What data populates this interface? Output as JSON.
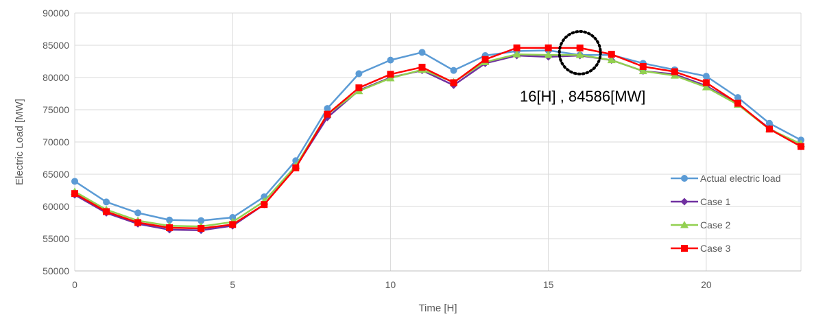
{
  "chart_data": {
    "type": "line",
    "title": "",
    "xlabel": "Time [H]",
    "ylabel": "Electric Load [MW]",
    "xlim": [
      0,
      23
    ],
    "ylim": [
      50000,
      90000
    ],
    "x_ticks": [
      0,
      5,
      10,
      15,
      20
    ],
    "y_ticks": [
      50000,
      55000,
      60000,
      65000,
      70000,
      75000,
      80000,
      85000,
      90000
    ],
    "grid": true,
    "legend_position": "right",
    "x": [
      0,
      1,
      2,
      3,
      4,
      5,
      6,
      7,
      8,
      9,
      10,
      11,
      12,
      13,
      14,
      15,
      16,
      17,
      18,
      19,
      20,
      21,
      22,
      23
    ],
    "series": [
      {
        "name": "Actual electric load",
        "color": "#5b9bd5",
        "marker": "circle",
        "values": [
          63900,
          60700,
          59000,
          57900,
          57800,
          58300,
          61500,
          67100,
          75200,
          80600,
          82700,
          83900,
          81100,
          83400,
          84100,
          84200,
          83500,
          83500,
          82200,
          81200,
          80200,
          76900,
          72900,
          70300
        ]
      },
      {
        "name": "Case 1",
        "color": "#7030a0",
        "marker": "diamond",
        "values": [
          61800,
          59000,
          57300,
          56400,
          56300,
          57000,
          60300,
          66100,
          73800,
          78000,
          80000,
          81100,
          78800,
          82200,
          83400,
          83200,
          83400,
          82700,
          81000,
          80500,
          78700,
          75900,
          72100,
          69300
        ]
      },
      {
        "name": "Case 2",
        "color": "#92d050",
        "marker": "triangle",
        "values": [
          62300,
          59500,
          57800,
          57000,
          56900,
          57600,
          60800,
          66300,
          74300,
          77900,
          79900,
          81200,
          79300,
          82400,
          83600,
          83500,
          83500,
          82700,
          81000,
          80300,
          78500,
          75800,
          72000,
          69700
        ]
      },
      {
        "name": "Case 3",
        "color": "#ff0000",
        "marker": "square",
        "values": [
          62000,
          59200,
          57500,
          56700,
          56600,
          57200,
          60300,
          66000,
          74300,
          78400,
          80500,
          81600,
          79200,
          82800,
          84600,
          84600,
          84586,
          83600,
          81700,
          80900,
          79200,
          76000,
          72000,
          69300
        ]
      }
    ],
    "annotation": {
      "text": "16[H] , 84586[MW]",
      "x": 16,
      "y": 84586
    }
  }
}
